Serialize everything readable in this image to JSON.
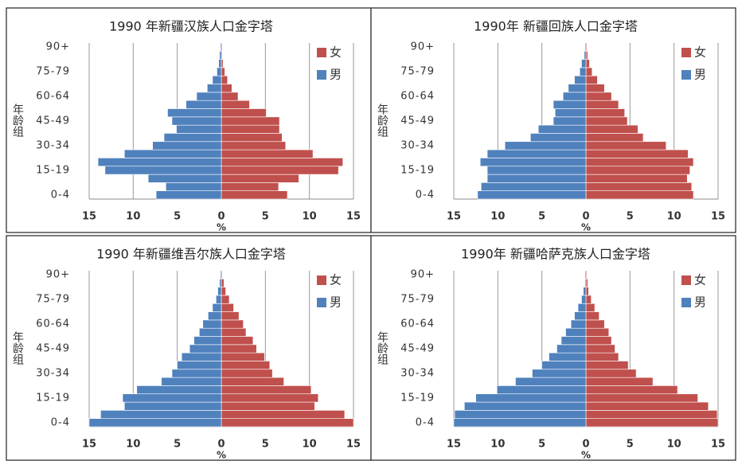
{
  "chart_data": [
    {
      "type": "pyramid",
      "title": "1990 年新疆汉族人口金字塔",
      "x_label": "%",
      "y_label": "年龄组",
      "categories": [
        "0-4",
        null,
        null,
        "15-19",
        null,
        null,
        "30-34",
        null,
        null,
        "45-49",
        null,
        null,
        "60-64",
        null,
        null,
        "75-79",
        null,
        null,
        "90+"
      ],
      "xlim": [
        0,
        15
      ],
      "xticks": [
        0,
        5,
        10,
        15
      ],
      "grid": true,
      "legend": "upper right",
      "series": [
        {
          "name": "女",
          "color": "#c0504d",
          "side": "right",
          "values": [
            7.5,
            6.5,
            8.8,
            13.3,
            13.8,
            10.4,
            7.3,
            6.9,
            6.6,
            6.6,
            5.1,
            3.2,
            1.9,
            1.2,
            0.7,
            0.4,
            0.2,
            0.1,
            0.1
          ]
        },
        {
          "name": "男",
          "color": "#4f81bd",
          "side": "left",
          "values": [
            7.4,
            6.3,
            8.3,
            13.2,
            14.0,
            11.0,
            7.8,
            6.5,
            5.1,
            5.6,
            6.1,
            4.0,
            2.8,
            1.6,
            1.0,
            0.5,
            0.3,
            0.2,
            0.1
          ]
        }
      ]
    },
    {
      "type": "pyramid",
      "title": "1990年 新疆回族人口金字塔",
      "x_label": "%",
      "y_label": "年龄组",
      "categories": [
        "0-4",
        null,
        null,
        "15-19",
        null,
        null,
        "30-34",
        null,
        null,
        "45-49",
        null,
        null,
        "60-64",
        null,
        null,
        "75-79",
        null,
        null,
        "90+"
      ],
      "xlim": [
        0,
        15
      ],
      "xticks": [
        0,
        5,
        10,
        15
      ],
      "grid": true,
      "legend": "upper right",
      "series": [
        {
          "name": "女",
          "color": "#c0504d",
          "side": "right",
          "values": [
            12.2,
            12.0,
            11.5,
            11.8,
            12.2,
            11.6,
            9.1,
            6.5,
            5.9,
            4.7,
            4.4,
            3.7,
            2.9,
            2.1,
            1.3,
            0.7,
            0.4,
            0.2,
            0.1
          ]
        },
        {
          "name": "男",
          "color": "#4f81bd",
          "side": "left",
          "values": [
            12.3,
            11.9,
            11.2,
            11.2,
            12.0,
            11.2,
            9.2,
            6.3,
            5.4,
            3.7,
            3.5,
            3.7,
            2.6,
            2.0,
            1.3,
            0.7,
            0.5,
            0.2,
            0.1
          ]
        }
      ]
    },
    {
      "type": "pyramid",
      "title": "1990 年新疆维吾尔族人口金字塔",
      "x_label": "%",
      "y_label": "年龄组",
      "categories": [
        "0-4",
        null,
        null,
        "15-19",
        null,
        null,
        "30-34",
        null,
        null,
        "45-49",
        null,
        null,
        "60-64",
        null,
        null,
        "75-79",
        null,
        null,
        "90+"
      ],
      "xlim": [
        0,
        15
      ],
      "xticks": [
        0,
        5,
        10,
        15
      ],
      "grid": true,
      "legend": "upper right",
      "series": [
        {
          "name": "女",
          "color": "#c0504d",
          "side": "right",
          "values": [
            15.0,
            14.0,
            10.6,
            11.0,
            10.2,
            7.1,
            5.8,
            5.5,
            4.9,
            4.0,
            3.6,
            2.8,
            2.5,
            2.0,
            1.4,
            0.9,
            0.5,
            0.3,
            0.1
          ]
        },
        {
          "name": "男",
          "color": "#4f81bd",
          "side": "left",
          "values": [
            15.0,
            13.7,
            11.0,
            11.2,
            9.6,
            6.8,
            5.6,
            5.0,
            4.5,
            3.6,
            3.1,
            2.5,
            2.1,
            1.5,
            1.0,
            0.6,
            0.4,
            0.2,
            0.1
          ]
        }
      ]
    },
    {
      "type": "pyramid",
      "title": "1990年 新疆哈萨克族人口金字塔",
      "x_label": "%",
      "y_label": "年龄组",
      "categories": [
        "0-4",
        null,
        null,
        "15-19",
        null,
        null,
        "30-34",
        null,
        null,
        "45-49",
        null,
        null,
        "60-64",
        null,
        null,
        "75-79",
        null,
        null,
        "90+"
      ],
      "xlim": [
        0,
        15
      ],
      "xticks": [
        0,
        5,
        10,
        15
      ],
      "grid": true,
      "legend": "upper right",
      "series": [
        {
          "name": "女",
          "color": "#c0504d",
          "side": "right",
          "values": [
            15.0,
            14.9,
            13.9,
            12.7,
            10.4,
            7.6,
            5.7,
            4.8,
            3.7,
            3.3,
            2.9,
            2.6,
            2.1,
            1.5,
            1.0,
            0.6,
            0.3,
            0.2,
            0.1
          ]
        },
        {
          "name": "男",
          "color": "#4f81bd",
          "side": "left",
          "values": [
            15.0,
            14.9,
            13.8,
            12.5,
            10.1,
            8.0,
            6.1,
            5.0,
            4.2,
            3.3,
            2.8,
            2.3,
            1.7,
            1.3,
            0.9,
            0.5,
            0.3,
            0.1,
            0.1
          ]
        }
      ]
    }
  ]
}
